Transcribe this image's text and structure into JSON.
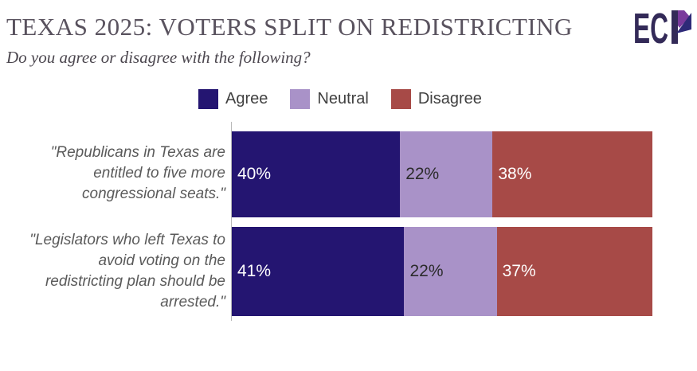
{
  "header": {
    "title": "TEXAS 2025: VOTERS SPLIT ON REDISTRICTING",
    "subtitle": "Do you agree or disagree with the following?",
    "logo": {
      "text": "ECP",
      "text_ec": "EC",
      "letter_p": "P",
      "navy": "#332a58",
      "purple": "#7a3a9c",
      "blue": "#2e2a78"
    }
  },
  "chart_data": {
    "type": "bar",
    "orientation": "horizontal",
    "stacked": true,
    "unit": "%",
    "xlim": [
      0,
      100
    ],
    "grid": false,
    "legend_position": "top",
    "title": "TEXAS 2025: VOTERS SPLIT ON REDISTRICTING",
    "question": "Do you agree or disagree with the following?",
    "categories": [
      "\"Republicans in Texas are entitled to five more congressional seats.\"",
      "\"Legislators who left Texas to avoid voting on the redistricting plan should be arrested.\""
    ],
    "category_lines": [
      [
        "\"Republicans in Texas are",
        "entitled to five more",
        "congressional seats.\""
      ],
      [
        "\"Legislators who left Texas to",
        "avoid voting on the",
        "redistricting plan should be",
        "arrested.\""
      ]
    ],
    "series": [
      {
        "name": "Agree",
        "color": "#241571",
        "text_color": "#ffffff",
        "values": [
          40,
          41
        ],
        "value_labels": [
          "40%",
          "41%"
        ]
      },
      {
        "name": "Neutral",
        "color": "#a992c8",
        "text_color": "#2b2b2b",
        "values": [
          22,
          22
        ],
        "value_labels": [
          "22%",
          "22%"
        ]
      },
      {
        "name": "Disagree",
        "color": "#a74a47",
        "text_color": "#ffffff",
        "values": [
          38,
          37
        ],
        "value_labels": [
          "38%",
          "37%"
        ]
      }
    ]
  }
}
